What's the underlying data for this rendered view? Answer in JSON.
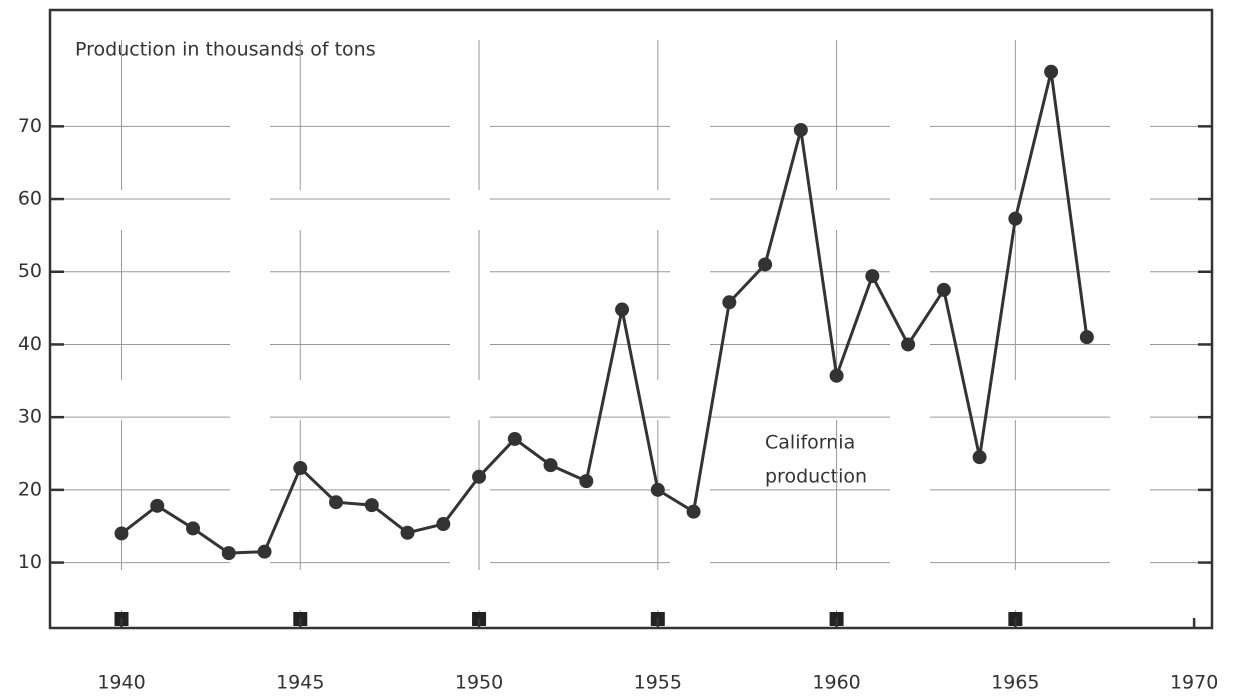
{
  "chart_data": {
    "type": "line",
    "y_label": "Production in thousands of tons",
    "annotation": [
      "California",
      "production"
    ],
    "x": [
      1940,
      1941,
      1942,
      1943,
      1944,
      1945,
      1946,
      1947,
      1948,
      1949,
      1950,
      1951,
      1952,
      1953,
      1954,
      1955,
      1956,
      1957,
      1958,
      1959,
      1960,
      1961,
      1962,
      1963,
      1964,
      1965,
      1966,
      1967
    ],
    "series": [
      {
        "color": "#333333",
        "values": [
          14,
          17.8,
          14.7,
          11.3,
          11.5,
          23,
          18.3,
          17.9,
          14.1,
          15.3,
          21.8,
          27,
          23.4,
          21.2,
          44.8,
          20,
          17,
          45.8,
          51,
          69.5,
          35.7,
          49.4,
          40,
          47.5,
          24.5,
          57.3,
          77.5,
          41
        ]
      }
    ],
    "xlim": [
      1938,
      1970.5
    ],
    "xticks": [
      1940,
      1945,
      1950,
      1955,
      1960,
      1965,
      1970
    ],
    "ylim": [
      1,
      86
    ],
    "yticks": [
      10,
      20,
      30,
      40,
      50,
      60,
      70
    ],
    "grid": true
  }
}
